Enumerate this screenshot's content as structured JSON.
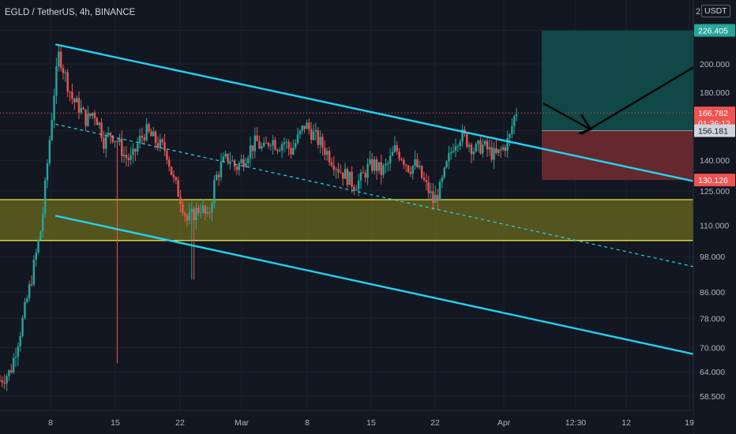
{
  "header": {
    "title": "EGLD / TetherUS, 4h, BINANCE",
    "pane_index": "2",
    "currency": "USDT"
  },
  "colors": {
    "background": "#131722",
    "up": "#26a69a",
    "down": "#ef5350",
    "trend": "#22d3ee",
    "lower_trend": "#4ef0d0",
    "zone_fill": "#6b6a1e",
    "zone_border": "#e6e24a",
    "profit_fill": "#0f4e4a",
    "loss_fill": "#6e2a30",
    "arrow": "#000000"
  },
  "chart_data": {
    "type": "candlestick",
    "title": "EGLD / TetherUS, 4h, BINANCE",
    "y_scale": "log",
    "y_unit": "USDT",
    "yticks": [
      58.5,
      64,
      70,
      78,
      86,
      98,
      110,
      125,
      140,
      156.181,
      166.782,
      180,
      200,
      226.405
    ],
    "ytick_labels": [
      "58.500",
      "64.000",
      "70.000",
      "78.000",
      "86.000",
      "98.000",
      "110.000",
      "125.000",
      "140.000",
      "156.181",
      "166.782",
      "180.000",
      "200.000",
      "226.405"
    ],
    "xticks": [
      "8",
      "15",
      "22",
      "Mar",
      "8",
      "15",
      "22",
      "Apr",
      "12:30",
      "12",
      "19"
    ],
    "price_tags": [
      {
        "label": "226.405",
        "value": 226.405,
        "kind": "target"
      },
      {
        "label": "166.782",
        "value": 166.782,
        "kind": "last"
      },
      {
        "label": "01:36:12",
        "value": 162.8,
        "kind": "countdown"
      },
      {
        "label": "156.181",
        "value": 156.181,
        "kind": "entry"
      },
      {
        "label": "130.126",
        "value": 130.126,
        "kind": "stop"
      }
    ],
    "last_price": 166.782,
    "support_zone": {
      "low": 104,
      "high": 121
    },
    "position": {
      "entry": 156.181,
      "target": 226.405,
      "stop": 130.126
    },
    "trendlines": [
      {
        "name": "upper",
        "from": [
          0.08,
          215
        ],
        "to": [
          0.94,
          129
        ],
        "style": "solid"
      },
      {
        "name": "mid",
        "from": [
          0.08,
          160
        ],
        "to": [
          0.94,
          94
        ],
        "style": "dashed"
      },
      {
        "name": "lower",
        "from": [
          0.08,
          114
        ],
        "to": [
          0.94,
          68
        ],
        "style": "solid"
      }
    ],
    "close_path": [
      [
        0.0,
        62
      ],
      [
        0.015,
        64
      ],
      [
        0.03,
        75
      ],
      [
        0.045,
        90
      ],
      [
        0.06,
        110
      ],
      [
        0.07,
        145
      ],
      [
        0.078,
        180
      ],
      [
        0.085,
        208
      ],
      [
        0.095,
        190
      ],
      [
        0.105,
        175
      ],
      [
        0.115,
        170
      ],
      [
        0.125,
        162
      ],
      [
        0.135,
        168
      ],
      [
        0.145,
        158
      ],
      [
        0.15,
        150
      ],
      [
        0.16,
        155
      ],
      [
        0.17,
        150
      ],
      [
        0.18,
        142
      ],
      [
        0.19,
        140
      ],
      [
        0.2,
        150
      ],
      [
        0.21,
        156
      ],
      [
        0.22,
        152
      ],
      [
        0.23,
        148
      ],
      [
        0.24,
        145
      ],
      [
        0.25,
        130
      ],
      [
        0.26,
        122
      ],
      [
        0.27,
        112
      ],
      [
        0.28,
        115
      ],
      [
        0.29,
        118
      ],
      [
        0.3,
        112
      ],
      [
        0.31,
        130
      ],
      [
        0.32,
        138
      ],
      [
        0.33,
        142
      ],
      [
        0.34,
        136
      ],
      [
        0.35,
        140
      ],
      [
        0.36,
        146
      ],
      [
        0.37,
        150
      ],
      [
        0.38,
        145
      ],
      [
        0.39,
        152
      ],
      [
        0.4,
        148
      ],
      [
        0.41,
        150
      ],
      [
        0.42,
        145
      ],
      [
        0.43,
        152
      ],
      [
        0.44,
        160
      ],
      [
        0.45,
        155
      ],
      [
        0.46,
        150
      ],
      [
        0.47,
        145
      ],
      [
        0.48,
        140
      ],
      [
        0.49,
        135
      ],
      [
        0.5,
        132
      ],
      [
        0.51,
        128
      ],
      [
        0.52,
        130
      ],
      [
        0.53,
        136
      ],
      [
        0.54,
        138
      ],
      [
        0.55,
        134
      ],
      [
        0.56,
        138
      ],
      [
        0.57,
        146
      ],
      [
        0.58,
        142
      ],
      [
        0.59,
        136
      ],
      [
        0.6,
        138
      ],
      [
        0.61,
        130
      ],
      [
        0.62,
        124
      ],
      [
        0.625,
        120
      ],
      [
        0.635,
        126
      ],
      [
        0.645,
        138
      ],
      [
        0.655,
        150
      ],
      [
        0.665,
        154
      ],
      [
        0.675,
        150
      ],
      [
        0.685,
        145
      ],
      [
        0.695,
        148
      ],
      [
        0.705,
        145
      ],
      [
        0.715,
        142
      ],
      [
        0.725,
        146
      ],
      [
        0.735,
        152
      ],
      [
        0.74,
        162
      ],
      [
        0.745,
        168
      ]
    ]
  }
}
